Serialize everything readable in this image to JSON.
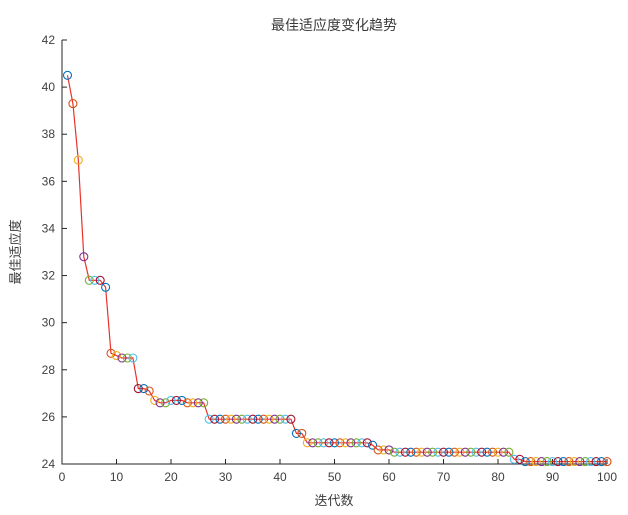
{
  "figure": {
    "background": "#ffffff"
  },
  "chart_data": {
    "type": "line",
    "title": "最佳适应度变化趋势",
    "xlabel": "迭代数",
    "ylabel": "最佳适应度",
    "xlim": [
      0,
      100
    ],
    "ylim": [
      24,
      42
    ],
    "xticks": [
      0,
      10,
      20,
      30,
      40,
      50,
      60,
      70,
      80,
      90,
      100
    ],
    "yticks": [
      24,
      26,
      28,
      30,
      32,
      34,
      36,
      38,
      40,
      42
    ],
    "grid": false,
    "line_color": "#e8332a",
    "axis_color": "#262626",
    "marker_style": "open-circle",
    "marker_colors": [
      "#0072BD",
      "#D95319",
      "#EDB120",
      "#7E2F8E",
      "#77AC30",
      "#4DBEEE",
      "#A2142F"
    ],
    "x": [
      1,
      2,
      3,
      4,
      5,
      6,
      7,
      8,
      9,
      10,
      11,
      12,
      13,
      14,
      15,
      16,
      17,
      18,
      19,
      20,
      21,
      22,
      23,
      24,
      25,
      26,
      27,
      28,
      29,
      30,
      31,
      32,
      33,
      34,
      35,
      36,
      37,
      38,
      39,
      40,
      41,
      42,
      43,
      44,
      45,
      46,
      47,
      48,
      49,
      50,
      51,
      52,
      53,
      54,
      55,
      56,
      57,
      58,
      59,
      60,
      61,
      62,
      63,
      64,
      65,
      66,
      67,
      68,
      69,
      70,
      71,
      72,
      73,
      74,
      75,
      76,
      77,
      78,
      79,
      80,
      81,
      82,
      83,
      84,
      85,
      86,
      87,
      88,
      89,
      90,
      91,
      92,
      93,
      94,
      95,
      96,
      97,
      98,
      99,
      100
    ],
    "values": [
      40.5,
      39.3,
      36.9,
      32.8,
      31.8,
      31.8,
      31.8,
      31.5,
      28.7,
      28.6,
      28.5,
      28.5,
      28.5,
      27.2,
      27.2,
      27.1,
      26.7,
      26.6,
      26.6,
      26.7,
      26.7,
      26.7,
      26.6,
      26.6,
      26.6,
      26.6,
      25.9,
      25.9,
      25.9,
      25.9,
      25.9,
      25.9,
      25.9,
      25.9,
      25.9,
      25.9,
      25.9,
      25.9,
      25.9,
      25.9,
      25.9,
      25.9,
      25.3,
      25.3,
      24.9,
      24.9,
      24.9,
      24.9,
      24.9,
      24.9,
      24.9,
      24.9,
      24.9,
      24.9,
      24.9,
      24.9,
      24.8,
      24.6,
      24.6,
      24.6,
      24.5,
      24.5,
      24.5,
      24.5,
      24.5,
      24.5,
      24.5,
      24.5,
      24.5,
      24.5,
      24.5,
      24.5,
      24.5,
      24.5,
      24.5,
      24.5,
      24.5,
      24.5,
      24.5,
      24.5,
      24.5,
      24.5,
      24.2,
      24.2,
      24.1,
      24.1,
      24.1,
      24.1,
      24.1,
      24.1,
      24.1,
      24.1,
      24.1,
      24.1,
      24.1,
      24.1,
      24.1,
      24.1,
      24.1,
      24.1
    ]
  }
}
